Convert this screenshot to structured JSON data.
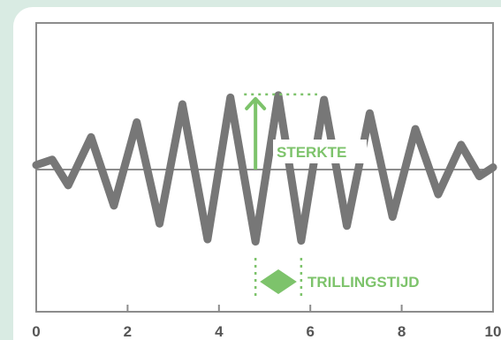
{
  "diagram": {
    "x_ticks": [
      "0",
      "2",
      "4",
      "6",
      "8",
      "10"
    ],
    "xlim": [
      0,
      10
    ],
    "wave_points": [
      [
        0,
        0.1
      ],
      [
        0.35,
        0.22
      ],
      [
        0.7,
        -0.35
      ],
      [
        1.2,
        0.72
      ],
      [
        1.7,
        -0.8
      ],
      [
        2.2,
        1.05
      ],
      [
        2.7,
        -1.2
      ],
      [
        3.2,
        1.45
      ],
      [
        3.75,
        -1.55
      ],
      [
        4.25,
        1.6
      ],
      [
        4.8,
        -1.6
      ],
      [
        5.3,
        1.65
      ],
      [
        5.8,
        -1.58
      ],
      [
        6.3,
        1.55
      ],
      [
        6.8,
        -1.25
      ],
      [
        7.3,
        1.25
      ],
      [
        7.8,
        -1.05
      ],
      [
        8.3,
        0.9
      ],
      [
        8.8,
        -0.55
      ],
      [
        9.3,
        0.55
      ],
      [
        9.7,
        -0.15
      ],
      [
        10,
        0.05
      ]
    ],
    "amplitude_label": "STERKTE",
    "period_label": "TRILLINGSTIJD",
    "amplitude_peak_x": 5.3,
    "amplitude_peak_value": 1.65,
    "period_start": 4.8,
    "period_end": 5.8,
    "colors": {
      "wave": "#777777",
      "axis": "#8c8c8c",
      "frame": "#8c8c8c",
      "accent": "#7dc36b",
      "background": "#d9ebe3"
    }
  }
}
